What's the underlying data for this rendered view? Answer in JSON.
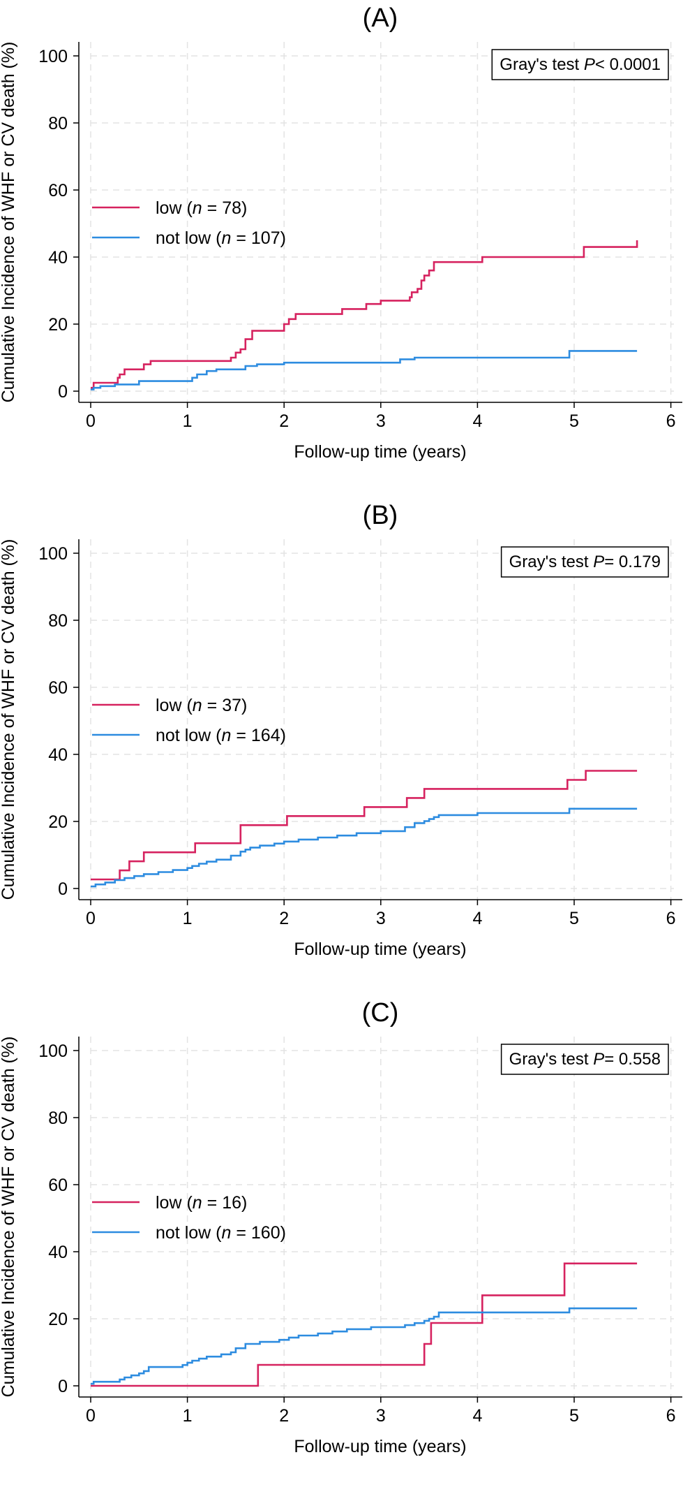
{
  "figure": {
    "xlabel": "Follow-up time (years)",
    "ylabel": "Cumulative Incidence of WHF or CV death (%)"
  },
  "chart_data": [
    {
      "type": "line",
      "step": true,
      "title": "(A)",
      "xlabel": "Follow-up time (years)",
      "ylabel": "Cumulative Incidence of WHF or CV death (%)",
      "xlim": [
        0,
        6
      ],
      "ylim": [
        0,
        100
      ],
      "xticks": [
        "0",
        "1",
        "2",
        "3",
        "4",
        "5",
        "6"
      ],
      "yticks": [
        "0",
        "20",
        "40",
        "60",
        "80",
        "100"
      ],
      "grid": true,
      "legend_position": "left",
      "annotation": {
        "label": "Gray's test ",
        "p_symbol": "P",
        "value": "< 0.0001"
      },
      "legend_n_symbol": "n",
      "series": [
        {
          "name_prefix": "low (",
          "name_suffix": " = 78)",
          "color": "#d6225f",
          "x": [
            0,
            0.03,
            0.25,
            0.28,
            0.3,
            0.35,
            0.5,
            0.55,
            0.62,
            0.8,
            1.0,
            1.2,
            1.4,
            1.45,
            1.5,
            1.55,
            1.6,
            1.67,
            1.95,
            2.0,
            2.05,
            2.12,
            2.4,
            2.6,
            2.85,
            3.0,
            3.25,
            3.3,
            3.32,
            3.38,
            3.42,
            3.45,
            3.5,
            3.55,
            3.6,
            4.05,
            4.9,
            5.1,
            5.65
          ],
          "y": [
            1,
            2.5,
            2.5,
            4,
            5,
            6.5,
            6.5,
            8,
            9,
            9,
            9,
            9,
            9,
            10,
            11.5,
            12.5,
            15.5,
            18,
            18,
            20,
            21.5,
            23,
            23,
            24.5,
            26,
            27,
            27,
            28,
            29.5,
            30.5,
            33,
            34.5,
            36,
            38.5,
            38.5,
            40,
            40,
            43,
            45
          ]
        },
        {
          "name_prefix": "not low (",
          "name_suffix": " = 107)",
          "color": "#2d8ce0",
          "x": [
            0,
            0.03,
            0.1,
            0.25,
            0.5,
            0.7,
            1.0,
            1.05,
            1.1,
            1.2,
            1.3,
            1.5,
            1.6,
            1.72,
            2.0,
            2.5,
            3.0,
            3.2,
            3.35,
            4.0,
            4.5,
            4.95,
            5.65
          ],
          "y": [
            0.5,
            1,
            1.5,
            2,
            3,
            3,
            3,
            4,
            5,
            6,
            6.5,
            6.5,
            7.5,
            8,
            8.5,
            8.5,
            8.5,
            9.5,
            10,
            10,
            10,
            12,
            12
          ]
        }
      ]
    },
    {
      "type": "line",
      "step": true,
      "title": "(B)",
      "xlabel": "Follow-up time (years)",
      "ylabel": "Cumulative Incidence of WHF or CV death (%)",
      "xlim": [
        0,
        6
      ],
      "ylim": [
        0,
        100
      ],
      "xticks": [
        "0",
        "1",
        "2",
        "3",
        "4",
        "5",
        "6"
      ],
      "yticks": [
        "0",
        "20",
        "40",
        "60",
        "80",
        "100"
      ],
      "grid": true,
      "legend_position": "left",
      "annotation": {
        "label": "Gray's test ",
        "p_symbol": "P",
        "value": "= 0.179"
      },
      "legend_n_symbol": "n",
      "series": [
        {
          "name_prefix": "low (",
          "name_suffix": " = 37)",
          "color": "#d6225f",
          "x": [
            0,
            0.3,
            0.4,
            0.55,
            1.08,
            1.55,
            2.03,
            2.83,
            3.27,
            3.45,
            4.93,
            5.12,
            5.65
          ],
          "y": [
            2.7,
            5.4,
            8.1,
            10.8,
            13.5,
            18.9,
            21.6,
            24.3,
            27,
            29.7,
            32.4,
            35.1,
            35.1
          ]
        },
        {
          "name_prefix": "not low (",
          "name_suffix": " = 164)",
          "color": "#2d8ce0",
          "x": [
            0,
            0.05,
            0.15,
            0.25,
            0.35,
            0.45,
            0.55,
            0.7,
            0.85,
            1.0,
            1.05,
            1.12,
            1.2,
            1.3,
            1.45,
            1.55,
            1.6,
            1.65,
            1.75,
            1.9,
            2.0,
            2.15,
            2.35,
            2.55,
            2.75,
            3.0,
            3.25,
            3.35,
            3.45,
            3.5,
            3.55,
            3.6,
            4.0,
            4.5,
            4.95,
            5.65
          ],
          "y": [
            0.6,
            1.2,
            1.8,
            2.5,
            3.1,
            3.7,
            4.3,
            4.9,
            5.5,
            6.1,
            6.7,
            7.4,
            8,
            8.6,
            9.8,
            11,
            11.6,
            12.2,
            12.8,
            13.4,
            14,
            14.6,
            15.2,
            15.8,
            16.5,
            17.1,
            18.3,
            19.5,
            20.1,
            20.7,
            21.3,
            21.9,
            22.5,
            22.5,
            23.8,
            23.8
          ]
        }
      ]
    },
    {
      "type": "line",
      "step": true,
      "title": "(C)",
      "xlabel": "Follow-up time (years)",
      "ylabel": "Cumulative Incidence of WHF or CV death (%)",
      "xlim": [
        0,
        6
      ],
      "ylim": [
        0,
        100
      ],
      "xticks": [
        "0",
        "1",
        "2",
        "3",
        "4",
        "5",
        "6"
      ],
      "yticks": [
        "0",
        "20",
        "40",
        "60",
        "80",
        "100"
      ],
      "grid": true,
      "legend_position": "left",
      "annotation": {
        "label": "Gray's test ",
        "p_symbol": "P",
        "value": "= 0.558"
      },
      "legend_n_symbol": "n",
      "series": [
        {
          "name_prefix": "low (",
          "name_suffix": " = 16)",
          "color": "#d6225f",
          "x": [
            0,
            1.73,
            3.45,
            3.52,
            4.05,
            4.9,
            5.65
          ],
          "y": [
            0,
            6.25,
            12.5,
            18.75,
            27,
            36.5,
            36.5
          ]
        },
        {
          "name_prefix": "not low (",
          "name_suffix": " = 160)",
          "color": "#2d8ce0",
          "x": [
            0,
            0.03,
            0.3,
            0.35,
            0.42,
            0.5,
            0.55,
            0.6,
            0.8,
            0.95,
            1.0,
            1.05,
            1.12,
            1.2,
            1.35,
            1.45,
            1.5,
            1.6,
            1.75,
            1.95,
            2.05,
            2.15,
            2.35,
            2.5,
            2.65,
            2.9,
            3.25,
            3.35,
            3.45,
            3.5,
            3.55,
            3.6,
            4.0,
            4.5,
            4.95,
            5.65
          ],
          "y": [
            0.6,
            1.2,
            1.9,
            2.5,
            3.1,
            3.7,
            4.4,
            5.6,
            5.6,
            6.2,
            6.9,
            7.5,
            8.1,
            8.7,
            9.4,
            10,
            11.2,
            12.5,
            13.1,
            13.7,
            14.4,
            15,
            15.6,
            16.2,
            16.9,
            17.5,
            18.1,
            18.7,
            19.4,
            20,
            20.6,
            21.9,
            21.9,
            21.9,
            23.1,
            23.1
          ]
        }
      ]
    }
  ]
}
